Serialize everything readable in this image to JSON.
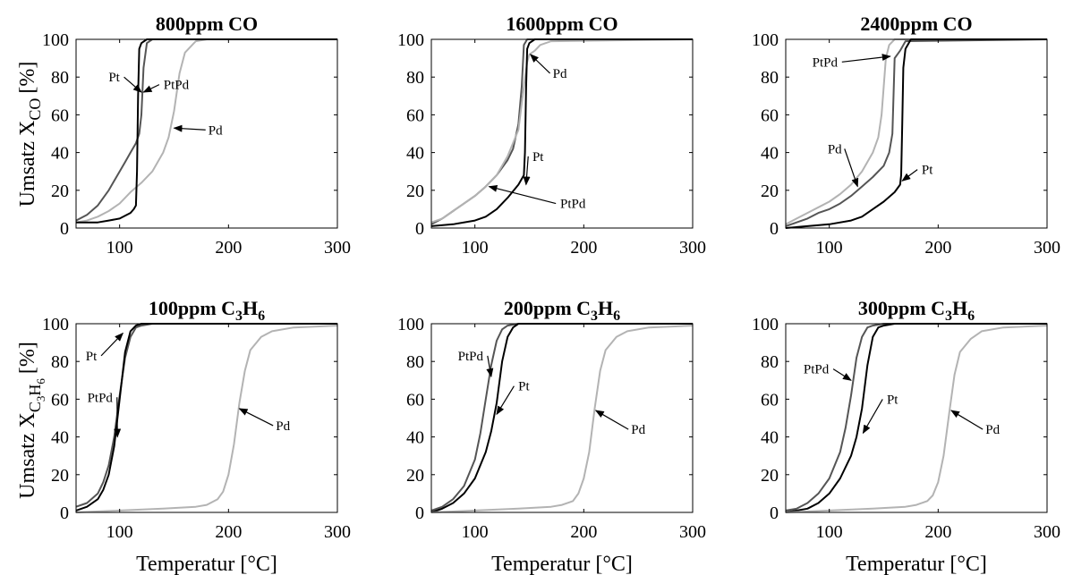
{
  "figure": {
    "ylabel_co": {
      "main": "Umsatz X",
      "sub": "CO",
      "unit": "[%]"
    },
    "ylabel_c3h6": {
      "main": "Umsatz X",
      "sub1": "C",
      "sub2": "3",
      "sub3": "H",
      "sub4": "6",
      "unit": "[%]"
    },
    "xlabel": "Temperatur [°C]"
  },
  "series_colors": {
    "Pt": "#000000",
    "PtPd": "#555555",
    "Pd": "#b3b3b3"
  },
  "chart_data": [
    {
      "type": "line",
      "title": "800ppm CO",
      "xlim": [
        60,
        300
      ],
      "ylim": [
        0,
        100
      ],
      "xticks": [
        100,
        200,
        300
      ],
      "yticks": [
        0,
        20,
        40,
        60,
        80,
        100
      ],
      "series": [
        {
          "name": "PtPd",
          "x": [
            60,
            70,
            80,
            90,
            100,
            105,
            110,
            115,
            118,
            120,
            122,
            125,
            130,
            150,
            300
          ],
          "y": [
            4,
            7,
            12,
            20,
            30,
            35,
            40,
            45,
            50,
            60,
            85,
            98,
            100,
            100,
            100
          ]
        },
        {
          "name": "Pd",
          "x": [
            60,
            70,
            80,
            90,
            100,
            110,
            120,
            130,
            140,
            145,
            150,
            155,
            160,
            170,
            180,
            300
          ],
          "y": [
            3,
            4,
            6,
            9,
            13,
            19,
            24,
            30,
            40,
            48,
            62,
            82,
            93,
            99,
            100,
            100
          ]
        },
        {
          "name": "Pt",
          "x": [
            60,
            70,
            80,
            90,
            100,
            110,
            113,
            115,
            116,
            117,
            118,
            120,
            125,
            130,
            300
          ],
          "y": [
            3,
            3,
            3,
            4,
            5,
            8,
            10,
            12,
            30,
            70,
            95,
            98,
            100,
            100,
            100
          ]
        }
      ],
      "annotations": [
        {
          "label": "Pt",
          "x": 95,
          "y": 80,
          "tx": 120,
          "ty": 72
        },
        {
          "label": "PtPd",
          "x": 152,
          "y": 76,
          "tx": 122,
          "ty": 72
        },
        {
          "label": "Pd",
          "x": 188,
          "y": 52,
          "tx": 150,
          "ty": 53
        }
      ]
    },
    {
      "type": "line",
      "title": "1600ppm CO",
      "xlim": [
        60,
        300
      ],
      "ylim": [
        0,
        100
      ],
      "xticks": [
        100,
        200,
        300
      ],
      "yticks": [
        0,
        20,
        40,
        60,
        80,
        100
      ],
      "series": [
        {
          "name": "PtPd",
          "x": [
            60,
            70,
            80,
            90,
            100,
            110,
            120,
            130,
            135,
            140,
            143,
            145,
            148,
            160,
            300
          ],
          "y": [
            2,
            5,
            9,
            13,
            17,
            22,
            28,
            36,
            42,
            55,
            75,
            97,
            100,
            100,
            100
          ]
        },
        {
          "name": "Pd",
          "x": [
            60,
            70,
            80,
            90,
            100,
            110,
            120,
            130,
            140,
            145,
            148,
            150,
            155,
            160,
            170,
            300
          ],
          "y": [
            3,
            5,
            9,
            13,
            17,
            22,
            28,
            38,
            52,
            75,
            88,
            92,
            94,
            97,
            99,
            100
          ]
        },
        {
          "name": "Pt",
          "x": [
            60,
            80,
            100,
            110,
            120,
            130,
            140,
            145,
            146,
            147,
            148,
            150,
            155,
            300
          ],
          "y": [
            1,
            2,
            4,
            6,
            10,
            16,
            23,
            28,
            40,
            75,
            95,
            98,
            100,
            100
          ]
        }
      ],
      "annotations": [
        {
          "label": "Pd",
          "x": 178,
          "y": 82,
          "tx": 151,
          "ty": 92
        },
        {
          "label": "Pt",
          "x": 158,
          "y": 38,
          "tx": 147,
          "ty": 23
        },
        {
          "label": "PtPd",
          "x": 190,
          "y": 13,
          "tx": 113,
          "ty": 22
        }
      ]
    },
    {
      "type": "line",
      "title": "2400ppm CO",
      "xlim": [
        60,
        300
      ],
      "ylim": [
        0,
        100
      ],
      "xticks": [
        100,
        200,
        300
      ],
      "yticks": [
        0,
        20,
        40,
        60,
        80,
        100
      ],
      "series": [
        {
          "name": "Pd",
          "x": [
            60,
            70,
            80,
            90,
            100,
            110,
            120,
            130,
            140,
            145,
            148,
            150,
            152,
            155,
            160,
            300
          ],
          "y": [
            2,
            5,
            8,
            11,
            14,
            18,
            23,
            30,
            40,
            48,
            60,
            75,
            90,
            97,
            100,
            100
          ]
        },
        {
          "name": "PtPd",
          "x": [
            60,
            70,
            80,
            90,
            100,
            110,
            120,
            130,
            140,
            150,
            155,
            158,
            160,
            165,
            170,
            300
          ],
          "y": [
            1,
            3,
            5,
            8,
            10,
            13,
            17,
            22,
            27,
            33,
            40,
            50,
            90,
            94,
            99,
            100
          ]
        },
        {
          "name": "Pt",
          "x": [
            60,
            80,
            100,
            120,
            130,
            140,
            150,
            160,
            165,
            166,
            167,
            168,
            170,
            175,
            300
          ],
          "y": [
            0,
            1,
            2,
            4,
            6,
            10,
            14,
            19,
            23,
            28,
            55,
            85,
            95,
            100,
            100
          ]
        }
      ],
      "annotations": [
        {
          "label": "PtPd",
          "x": 96,
          "y": 88,
          "tx": 156,
          "ty": 91
        },
        {
          "label": "Pd",
          "x": 105,
          "y": 42,
          "tx": 126,
          "ty": 22
        },
        {
          "label": "Pt",
          "x": 190,
          "y": 31,
          "tx": 167,
          "ty": 25
        }
      ]
    },
    {
      "type": "line",
      "title": "100ppm C3H6",
      "xlim": [
        60,
        300
      ],
      "ylim": [
        0,
        100
      ],
      "xticks": [
        100,
        200,
        300
      ],
      "yticks": [
        0,
        20,
        40,
        60,
        80,
        100
      ],
      "series": [
        {
          "name": "PtPd",
          "x": [
            60,
            70,
            80,
            85,
            90,
            95,
            100,
            105,
            110,
            115,
            120,
            130,
            300
          ],
          "y": [
            3,
            5,
            10,
            16,
            25,
            40,
            62,
            82,
            93,
            98,
            99,
            100,
            100
          ]
        },
        {
          "name": "Pt",
          "x": [
            60,
            70,
            80,
            85,
            90,
            95,
            100,
            105,
            110,
            115,
            120,
            130,
            300
          ],
          "y": [
            1,
            3,
            7,
            12,
            20,
            35,
            60,
            85,
            96,
            99,
            100,
            100,
            100
          ]
        },
        {
          "name": "Pd",
          "x": [
            60,
            100,
            140,
            170,
            180,
            190,
            195,
            200,
            205,
            210,
            215,
            220,
            230,
            240,
            260,
            300
          ],
          "y": [
            0,
            1,
            2,
            3,
            4,
            7,
            11,
            20,
            36,
            58,
            75,
            86,
            93,
            96,
            98,
            99
          ]
        }
      ],
      "annotations": [
        {
          "label": "Pt",
          "x": 74,
          "y": 83,
          "tx": 103,
          "ty": 95
        },
        {
          "label": "PtPd",
          "x": 82,
          "y": 61,
          "tx": 98,
          "ty": 40
        },
        {
          "label": "Pd",
          "x": 250,
          "y": 46,
          "tx": 210,
          "ty": 55
        }
      ]
    },
    {
      "type": "line",
      "title": "200ppm C3H6",
      "xlim": [
        60,
        300
      ],
      "ylim": [
        0,
        100
      ],
      "xticks": [
        100,
        200,
        300
      ],
      "yticks": [
        0,
        20,
        40,
        60,
        80,
        100
      ],
      "series": [
        {
          "name": "PtPd",
          "x": [
            60,
            70,
            80,
            90,
            100,
            105,
            110,
            115,
            120,
            125,
            130,
            140,
            300
          ],
          "y": [
            1,
            3,
            7,
            14,
            28,
            42,
            60,
            78,
            91,
            97,
            99,
            100,
            100
          ]
        },
        {
          "name": "Pt",
          "x": [
            60,
            70,
            80,
            90,
            100,
            110,
            115,
            120,
            125,
            130,
            135,
            140,
            150,
            300
          ],
          "y": [
            0,
            2,
            5,
            10,
            18,
            32,
            43,
            58,
            80,
            93,
            98,
            100,
            100,
            100
          ]
        },
        {
          "name": "Pd",
          "x": [
            60,
            100,
            140,
            170,
            180,
            190,
            195,
            200,
            205,
            210,
            215,
            220,
            230,
            240,
            260,
            300
          ],
          "y": [
            0,
            1,
            2,
            3,
            4,
            6,
            10,
            18,
            32,
            55,
            75,
            86,
            93,
            96,
            98,
            99
          ]
        }
      ],
      "annotations": [
        {
          "label": "PtPd",
          "x": 96,
          "y": 83,
          "tx": 115,
          "ty": 72
        },
        {
          "label": "Pt",
          "x": 145,
          "y": 67,
          "tx": 120,
          "ty": 52
        },
        {
          "label": "Pd",
          "x": 250,
          "y": 44,
          "tx": 211,
          "ty": 54
        }
      ]
    },
    {
      "type": "line",
      "title": "300ppm C3H6",
      "xlim": [
        60,
        300
      ],
      "ylim": [
        0,
        100
      ],
      "xticks": [
        100,
        200,
        300
      ],
      "yticks": [
        0,
        20,
        40,
        60,
        80,
        100
      ],
      "series": [
        {
          "name": "PtPd",
          "x": [
            60,
            70,
            80,
            90,
            100,
            110,
            115,
            120,
            125,
            130,
            135,
            140,
            150,
            300
          ],
          "y": [
            1,
            2,
            5,
            10,
            18,
            32,
            45,
            62,
            82,
            93,
            98,
            99,
            100,
            100
          ]
        },
        {
          "name": "Pt",
          "x": [
            60,
            80,
            90,
            100,
            110,
            120,
            125,
            130,
            135,
            140,
            145,
            150,
            160,
            300
          ],
          "y": [
            0,
            2,
            5,
            10,
            18,
            30,
            40,
            55,
            78,
            93,
            98,
            99,
            100,
            100
          ]
        },
        {
          "name": "Pd",
          "x": [
            60,
            100,
            140,
            170,
            180,
            190,
            195,
            200,
            205,
            210,
            215,
            220,
            230,
            240,
            260,
            300
          ],
          "y": [
            0,
            1,
            2,
            3,
            4,
            6,
            9,
            16,
            30,
            52,
            73,
            85,
            92,
            96,
            98,
            99
          ]
        }
      ],
      "annotations": [
        {
          "label": "PtPd",
          "x": 88,
          "y": 76,
          "tx": 120,
          "ty": 70
        },
        {
          "label": "Pt",
          "x": 158,
          "y": 60,
          "tx": 131,
          "ty": 42
        },
        {
          "label": "Pd",
          "x": 250,
          "y": 44,
          "tx": 212,
          "ty": 54
        }
      ]
    }
  ]
}
